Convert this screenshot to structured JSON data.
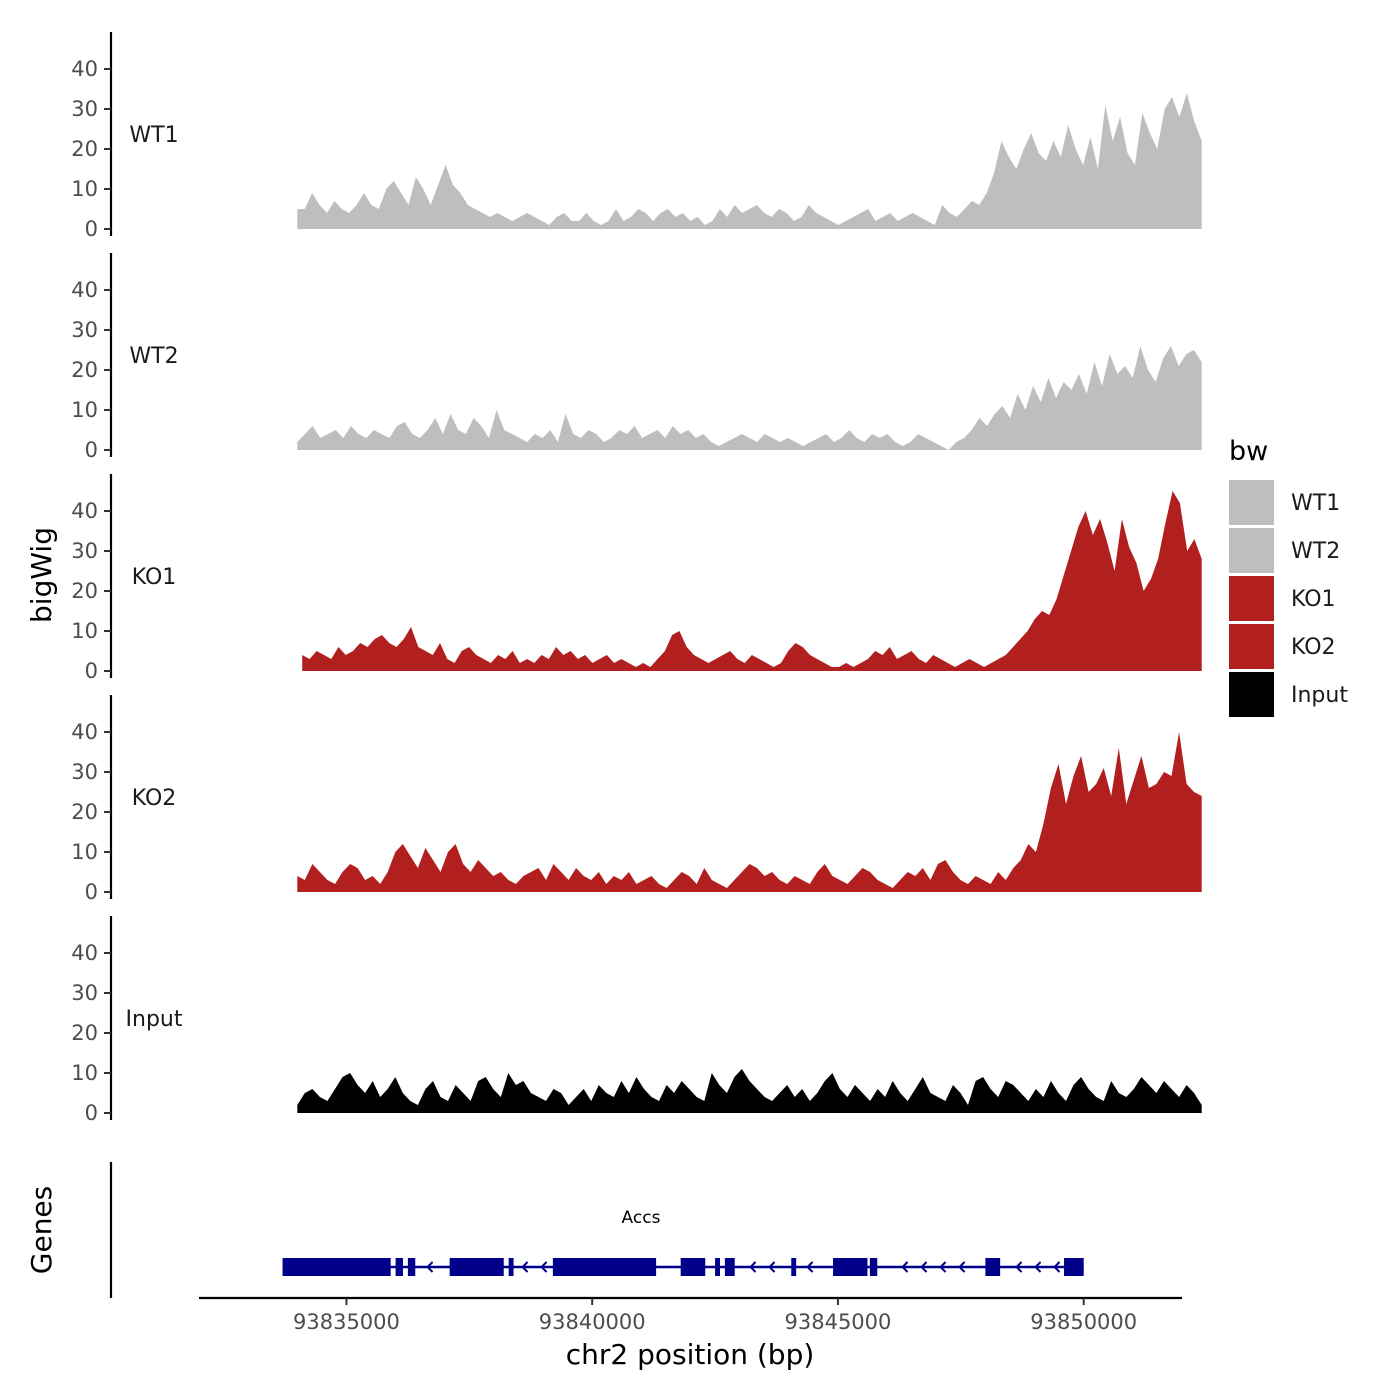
{
  "chart_data": {
    "type": "area",
    "ylabel": "bigWig",
    "xlabel": "chr2 position (bp)",
    "panel_label_genes": "Genes",
    "x_range": [
      93832000,
      93852000
    ],
    "ylim": [
      0,
      48
    ],
    "y_ticks": [
      0,
      10,
      20,
      30,
      40
    ],
    "x_ticks": [
      93835000,
      93840000,
      93845000,
      93850000
    ],
    "x_tick_labels": [
      "93835000",
      "93840000",
      "93845000",
      "93850000"
    ],
    "legend": {
      "title": "bw",
      "position": "right",
      "entries": [
        {
          "label": "WT1",
          "color": "#bebebe"
        },
        {
          "label": "WT2",
          "color": "#bebebe"
        },
        {
          "label": "KO1",
          "color": "#b21f1f"
        },
        {
          "label": "KO2",
          "color": "#b21f1f"
        },
        {
          "label": "Input",
          "color": "#000000"
        }
      ]
    },
    "series": [
      {
        "name": "WT1",
        "color": "#bebebe",
        "x_start": 93834000,
        "x_end": 93852400,
        "values": [
          5,
          5,
          9,
          6,
          4,
          7,
          5,
          4,
          6,
          9,
          6,
          5,
          10,
          12,
          9,
          6,
          13,
          10,
          6,
          11,
          16,
          11,
          9,
          6,
          5,
          4,
          3,
          4,
          3,
          2,
          3,
          4,
          3,
          2,
          1,
          3,
          4,
          2,
          2,
          4,
          2,
          1,
          2,
          5,
          2,
          3,
          5,
          4,
          2,
          4,
          5,
          3,
          4,
          2,
          3,
          1,
          2,
          5,
          3,
          6,
          4,
          5,
          6,
          4,
          3,
          5,
          4,
          2,
          3,
          6,
          4,
          3,
          2,
          1,
          2,
          3,
          4,
          5,
          2,
          3,
          4,
          2,
          3,
          4,
          3,
          2,
          1,
          6,
          4,
          3,
          5,
          7,
          6,
          9,
          14,
          22,
          18,
          15,
          20,
          24,
          19,
          17,
          22,
          18,
          26,
          20,
          16,
          23,
          15,
          31,
          22,
          28,
          19,
          16,
          29,
          24,
          20,
          30,
          33,
          28,
          34,
          27,
          22
        ]
      },
      {
        "name": "WT2",
        "color": "#bebebe",
        "x_start": 93834000,
        "x_end": 93852400,
        "values": [
          2,
          4,
          6,
          3,
          4,
          5,
          3,
          6,
          4,
          3,
          5,
          4,
          3,
          6,
          7,
          4,
          3,
          5,
          8,
          4,
          9,
          5,
          4,
          8,
          6,
          3,
          10,
          5,
          4,
          3,
          2,
          4,
          3,
          5,
          2,
          9,
          4,
          3,
          5,
          4,
          2,
          3,
          5,
          4,
          6,
          3,
          4,
          5,
          3,
          6,
          4,
          5,
          3,
          4,
          2,
          1,
          2,
          3,
          4,
          3,
          2,
          4,
          3,
          2,
          3,
          2,
          1,
          2,
          3,
          4,
          2,
          3,
          5,
          3,
          2,
          4,
          3,
          4,
          2,
          1,
          2,
          4,
          3,
          2,
          1,
          0,
          2,
          3,
          5,
          8,
          6,
          9,
          11,
          8,
          14,
          10,
          16,
          12,
          18,
          13,
          17,
          15,
          19,
          14,
          22,
          16,
          24,
          19,
          21,
          18,
          26,
          20,
          17,
          23,
          26,
          21,
          24,
          25,
          22
        ]
      },
      {
        "name": "KO1",
        "color": "#b21f1f",
        "x_start": 93834100,
        "x_end": 93852400,
        "values": [
          4,
          3,
          5,
          4,
          3,
          6,
          4,
          5,
          7,
          6,
          8,
          9,
          7,
          6,
          8,
          11,
          6,
          5,
          4,
          7,
          3,
          2,
          5,
          6,
          4,
          3,
          2,
          4,
          3,
          5,
          2,
          3,
          2,
          4,
          3,
          6,
          4,
          5,
          3,
          4,
          2,
          3,
          4,
          2,
          3,
          2,
          1,
          2,
          1,
          3,
          5,
          9,
          10,
          6,
          4,
          3,
          2,
          3,
          4,
          5,
          3,
          2,
          4,
          3,
          2,
          1,
          2,
          5,
          7,
          6,
          4,
          3,
          2,
          1,
          1,
          2,
          1,
          2,
          3,
          5,
          4,
          6,
          3,
          4,
          5,
          3,
          2,
          4,
          3,
          2,
          1,
          2,
          3,
          2,
          1,
          2,
          3,
          4,
          6,
          8,
          10,
          13,
          15,
          14,
          18,
          24,
          30,
          36,
          40,
          34,
          38,
          32,
          25,
          38,
          31,
          27,
          20,
          23,
          28,
          37,
          45,
          42,
          30,
          33,
          28
        ]
      },
      {
        "name": "KO2",
        "color": "#b21f1f",
        "x_start": 93834000,
        "x_end": 93852400,
        "values": [
          4,
          3,
          7,
          5,
          3,
          2,
          5,
          7,
          6,
          3,
          4,
          2,
          5,
          10,
          12,
          9,
          6,
          11,
          8,
          5,
          10,
          12,
          7,
          5,
          8,
          6,
          4,
          5,
          3,
          2,
          4,
          5,
          6,
          3,
          7,
          5,
          3,
          6,
          4,
          3,
          5,
          2,
          4,
          3,
          5,
          2,
          3,
          4,
          2,
          1,
          3,
          5,
          4,
          2,
          6,
          3,
          2,
          1,
          3,
          5,
          7,
          6,
          4,
          5,
          3,
          2,
          4,
          3,
          2,
          5,
          7,
          4,
          3,
          2,
          4,
          6,
          5,
          3,
          2,
          1,
          3,
          5,
          4,
          6,
          3,
          7,
          8,
          5,
          3,
          2,
          4,
          3,
          2,
          5,
          3,
          6,
          8,
          12,
          10,
          17,
          26,
          32,
          22,
          29,
          34,
          25,
          27,
          31,
          24,
          36,
          22,
          28,
          34,
          26,
          27,
          30,
          29,
          40,
          27,
          25,
          24
        ]
      },
      {
        "name": "Input",
        "color": "#000000",
        "x_start": 93834000,
        "x_end": 93852400,
        "values": [
          2,
          5,
          6,
          4,
          3,
          6,
          9,
          10,
          7,
          5,
          8,
          4,
          6,
          9,
          5,
          3,
          2,
          6,
          8,
          4,
          3,
          7,
          5,
          3,
          8,
          9,
          6,
          4,
          10,
          7,
          8,
          5,
          4,
          3,
          6,
          5,
          2,
          4,
          6,
          3,
          7,
          5,
          4,
          8,
          5,
          9,
          6,
          4,
          3,
          7,
          5,
          8,
          6,
          4,
          3,
          10,
          7,
          5,
          9,
          11,
          8,
          6,
          4,
          3,
          5,
          7,
          4,
          6,
          3,
          5,
          8,
          10,
          6,
          4,
          7,
          5,
          3,
          6,
          4,
          8,
          5,
          3,
          6,
          9,
          5,
          4,
          3,
          7,
          5,
          2,
          8,
          9,
          6,
          4,
          8,
          7,
          5,
          3,
          6,
          4,
          8,
          5,
          3,
          7,
          9,
          6,
          4,
          3,
          8,
          5,
          4,
          6,
          9,
          7,
          5,
          8,
          6,
          4,
          7,
          5,
          2
        ]
      }
    ],
    "gene": {
      "name": "Accs",
      "strand": "-",
      "color": "#00008b",
      "start": 93833700,
      "end": 93850000,
      "exons": [
        [
          93833700,
          93835500
        ],
        [
          93835500,
          93835900
        ],
        [
          93836000,
          93836150
        ],
        [
          93836250,
          93836400
        ],
        [
          93837100,
          93838200
        ],
        [
          93838300,
          93838400
        ],
        [
          93839200,
          93841300
        ],
        [
          93841800,
          93842300
        ],
        [
          93842500,
          93842600
        ],
        [
          93842700,
          93842900
        ],
        [
          93844050,
          93844150
        ],
        [
          93844900,
          93845600
        ],
        [
          93845650,
          93845800
        ],
        [
          93848000,
          93848300
        ],
        [
          93849600,
          93850000
        ]
      ]
    }
  }
}
